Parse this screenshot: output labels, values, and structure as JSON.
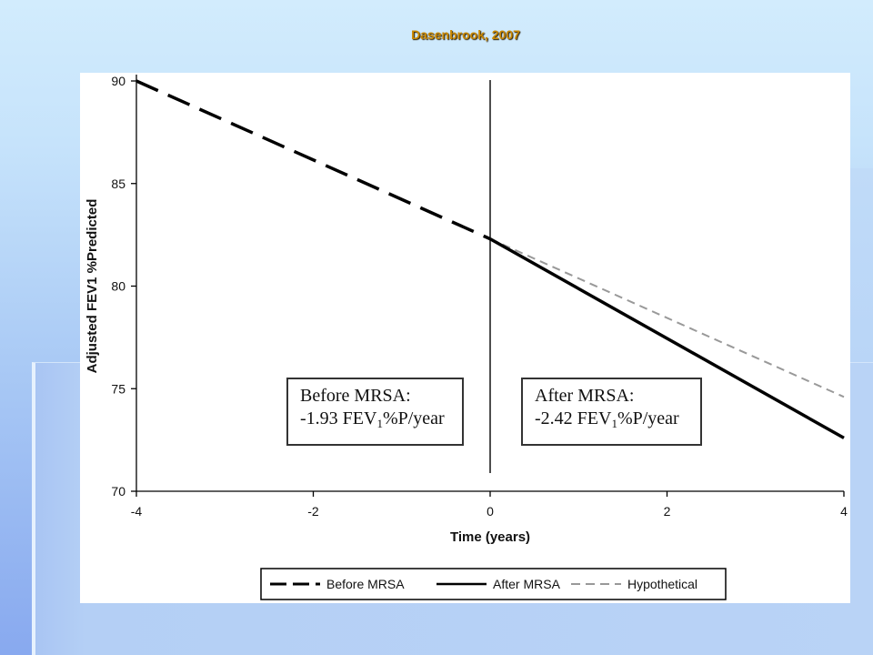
{
  "slide": {
    "title": "Dasenbrook, 2007",
    "title_color": "#c98700"
  },
  "chart_data": {
    "type": "line",
    "xlabel": "Time (years)",
    "ylabel": "Adjusted FEV1 %Predicted",
    "xlim": [
      -4,
      4
    ],
    "ylim": [
      70,
      90
    ],
    "x_ticks": [
      "-4",
      "-2",
      "0",
      "2",
      "4"
    ],
    "y_ticks": [
      "70",
      "75",
      "80",
      "85",
      "90"
    ],
    "grid": false,
    "reference_line": {
      "x": 0
    },
    "series": [
      {
        "name": "Before MRSA",
        "line_style": "long-dash",
        "color": "#000000",
        "x": [
          -4,
          0
        ],
        "y": [
          90,
          82.3
        ]
      },
      {
        "name": "After MRSA",
        "line_style": "solid",
        "color": "#000000",
        "x": [
          0,
          4
        ],
        "y": [
          82.3,
          72.6
        ]
      },
      {
        "name": "Hypothetical",
        "line_style": "dash",
        "color": "#999999",
        "x": [
          0,
          4
        ],
        "y": [
          82.3,
          74.6
        ]
      }
    ],
    "annotations": [
      {
        "heading": "Before MRSA:",
        "rate_prefix": "-1.93 FEV",
        "rate_subscript": "1",
        "rate_suffix": "%P/year"
      },
      {
        "heading": "After MRSA:",
        "rate_prefix": "-2.42 FEV",
        "rate_subscript": "1",
        "rate_suffix": "%P/year"
      }
    ],
    "legend_position": "bottom"
  }
}
